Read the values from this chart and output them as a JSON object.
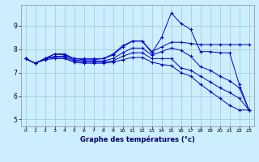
{
  "background_color": "#cceeff",
  "plot_bg_color": "#cceeff",
  "grid_color": "#99cccc",
  "line_color": "#0000cc",
  "xlabel": "Graphe des températures (°c)",
  "xlim": [
    -0.5,
    23.5
  ],
  "ylim": [
    4.7,
    9.9
  ],
  "yticks": [
    5,
    6,
    7,
    8,
    9
  ],
  "xticks": [
    0,
    1,
    2,
    3,
    4,
    5,
    6,
    7,
    8,
    9,
    10,
    11,
    12,
    13,
    14,
    15,
    16,
    17,
    18,
    19,
    20,
    21,
    22,
    23
  ],
  "series": [
    [
      7.6,
      7.4,
      7.6,
      7.8,
      7.8,
      7.6,
      7.6,
      7.6,
      7.6,
      7.8,
      8.15,
      8.35,
      8.35,
      7.9,
      8.1,
      8.3,
      8.3,
      8.25,
      8.2,
      8.2,
      8.2,
      8.2,
      8.2,
      8.2
    ],
    [
      7.6,
      7.4,
      7.6,
      7.8,
      7.75,
      7.6,
      7.55,
      7.55,
      7.6,
      7.75,
      8.1,
      8.35,
      8.35,
      7.85,
      8.5,
      9.55,
      9.1,
      8.85,
      7.9,
      7.9,
      7.85,
      7.85,
      6.5,
      5.4
    ],
    [
      7.6,
      7.4,
      7.6,
      7.7,
      7.7,
      7.55,
      7.5,
      7.5,
      7.5,
      7.6,
      7.85,
      8.05,
      8.05,
      7.75,
      7.9,
      8.05,
      7.95,
      7.7,
      7.25,
      7.1,
      6.85,
      6.65,
      6.35,
      5.4
    ],
    [
      7.6,
      7.4,
      7.6,
      7.65,
      7.65,
      7.5,
      7.45,
      7.45,
      7.45,
      7.5,
      7.7,
      7.85,
      7.85,
      7.6,
      7.6,
      7.6,
      7.2,
      7.1,
      6.85,
      6.6,
      6.35,
      6.15,
      5.9,
      5.4
    ],
    [
      7.6,
      7.4,
      7.55,
      7.6,
      7.6,
      7.45,
      7.4,
      7.4,
      7.4,
      7.45,
      7.55,
      7.65,
      7.65,
      7.45,
      7.35,
      7.3,
      7.0,
      6.85,
      6.5,
      6.2,
      5.9,
      5.6,
      5.4,
      5.4
    ]
  ]
}
